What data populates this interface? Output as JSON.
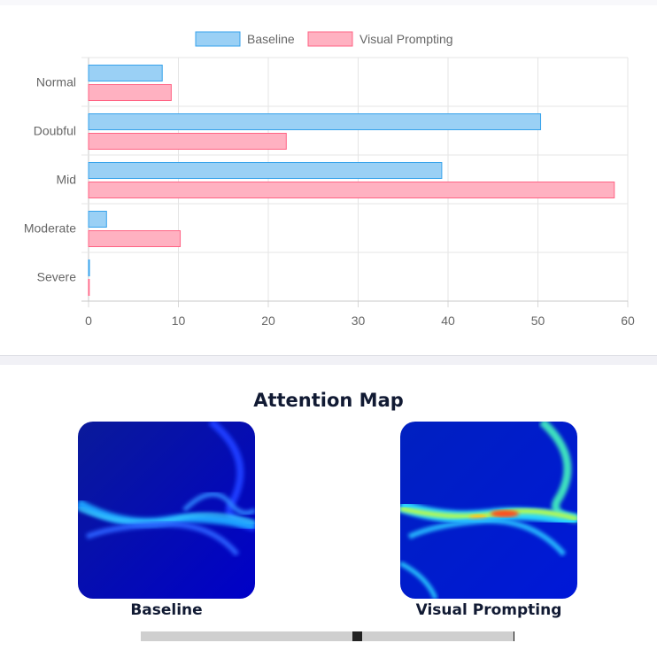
{
  "chart_data": {
    "type": "bar",
    "orientation": "horizontal",
    "categories": [
      "Normal",
      "Doubful",
      "Mid",
      "Moderate",
      "Severe"
    ],
    "series": [
      {
        "name": "Baseline",
        "values": [
          8.2,
          50.3,
          39.3,
          2.0,
          0.1
        ],
        "color": "#9ad0f5",
        "border": "#36a2eb"
      },
      {
        "name": "Visual Prompting",
        "values": [
          9.2,
          22.0,
          58.5,
          10.2,
          0.0
        ],
        "color": "#ffb1c1",
        "border": "#ff6384"
      }
    ],
    "xlim": [
      0,
      60
    ],
    "xticks": [
      "0",
      "10",
      "20",
      "30",
      "40",
      "50",
      "60"
    ],
    "grid": true,
    "legend": "top-center"
  },
  "attention": {
    "title": "Attention Map",
    "maps": [
      {
        "caption": "Baseline",
        "icon": "attention-heatmap-baseline"
      },
      {
        "caption": "Visual Prompting",
        "icon": "attention-heatmap-visual-prompting"
      }
    ]
  },
  "slider": {
    "value_fraction": 0.58
  }
}
